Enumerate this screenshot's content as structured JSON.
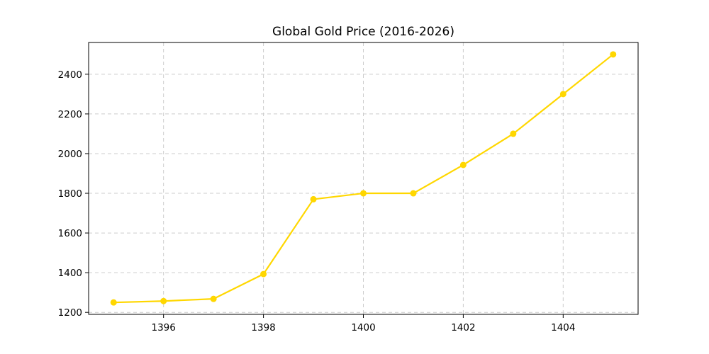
{
  "chart_data": {
    "type": "line",
    "title": "Global Gold Price (2016-2026)",
    "xlabel": "",
    "ylabel": "",
    "grid": true,
    "xlim": [
      1394.5,
      1405.5
    ],
    "ylim": [
      1190,
      2560
    ],
    "x_ticks": [
      1396,
      1398,
      1400,
      1402,
      1404
    ],
    "y_ticks": [
      1200,
      1400,
      1600,
      1800,
      2000,
      2200,
      2400
    ],
    "series": [
      {
        "color": "#FFD700",
        "marker": "circle",
        "x": [
          1395,
          1396,
          1397,
          1398,
          1399,
          1400,
          1401,
          1402,
          1403,
          1404,
          1405
        ],
        "y": [
          1250,
          1257,
          1268,
          1393,
          1770,
          1800,
          1800,
          1943,
          2100,
          2300,
          2500
        ]
      }
    ]
  }
}
